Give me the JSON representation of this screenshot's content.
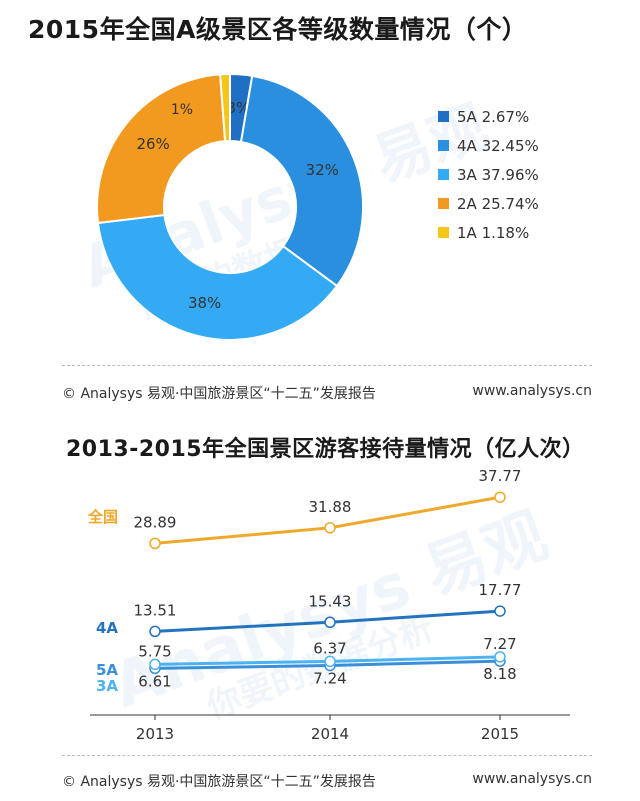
{
  "charts": {
    "donut": {
      "title": "2015年全国A级景区各等级数量情况（个）",
      "footer_left": "© Analysys 易观·中国旅游景区“十二五”发展报告",
      "footer_right": "www.analysys.cn"
    },
    "line": {
      "title": "2013-2015年全国景区游客接待量情况（亿人次）",
      "footer_left": "© Analysys 易观·中国旅游景区“十二五”发展报告",
      "footer_right": "www.analysys.cn"
    }
  },
  "watermark": {
    "brand": "Analysys 易观",
    "slogan": "你要的数据分析"
  },
  "chart_data": [
    {
      "type": "pie",
      "title": "2015年全国A级景区各等级数量情况（个）",
      "slices": [
        {
          "label": "5A",
          "legend": "5A 2.67%",
          "percent": 2.67,
          "data_label": "3%",
          "color": "#1f6fc5"
        },
        {
          "label": "4A",
          "legend": "4A 32.45%",
          "percent": 32.45,
          "data_label": "32%",
          "color": "#2b8fe0"
        },
        {
          "label": "3A",
          "legend": "3A 37.96%",
          "percent": 37.96,
          "data_label": "38%",
          "color": "#33aaf3"
        },
        {
          "label": "2A",
          "legend": "2A 25.74%",
          "percent": 25.74,
          "data_label": "26%",
          "color": "#f29a1f"
        },
        {
          "label": "1A",
          "legend": "1A 1.18%",
          "percent": 1.18,
          "data_label": "1%",
          "color": "#f5c518"
        }
      ],
      "legend_position": "right"
    },
    {
      "type": "line",
      "title": "2013-2015年全国景区游客接待量情况（亿人次）",
      "x": [
        "2013",
        "2014",
        "2015"
      ],
      "series": [
        {
          "name": "全国",
          "values": [
            28.89,
            31.88,
            37.77
          ],
          "labels": [
            "28.89",
            "31.88",
            "37.77"
          ],
          "color": "#f0a82a"
        },
        {
          "name": "4A",
          "values": [
            13.51,
            15.43,
            17.77
          ],
          "labels": [
            "13.51",
            "15.43",
            "17.77"
          ],
          "color": "#2373bf"
        },
        {
          "name": "5A",
          "values": [
            5.75,
            6.37,
            7.27
          ],
          "labels": [
            "5.75",
            "6.37",
            "7.27"
          ],
          "color": "#3a8fd8"
        },
        {
          "name": "3A",
          "values": [
            6.61,
            7.24,
            8.18
          ],
          "labels": [
            "6.61",
            "7.24",
            "8.18"
          ],
          "color": "#4bb3f0"
        }
      ],
      "grid": false,
      "legend_position": "left"
    }
  ]
}
